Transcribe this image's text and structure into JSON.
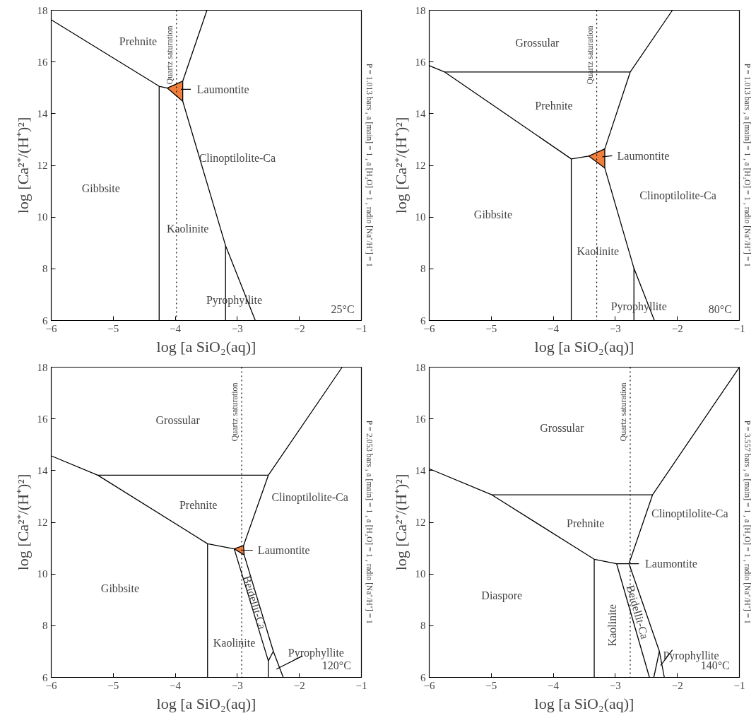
{
  "chart_data": [
    {
      "type": "line",
      "xlabel": "log [a SiO₂(aq)]",
      "ylabel": "log [Ca²⁺/(H⁺)²]",
      "xlim": [
        -6,
        -1
      ],
      "ylim": [
        6,
        18
      ],
      "xticks": [
        -6,
        -5,
        -4,
        -3,
        -2,
        -1
      ],
      "yticks": [
        6,
        8,
        10,
        12,
        14,
        16,
        18
      ],
      "grid": false,
      "series": [
        {
          "color": "#000000",
          "x": [
            -6,
            -4.26,
            -4.13
          ],
          "values": [
            17.63,
            15.06,
            14.99
          ]
        },
        {
          "color": "#000000",
          "x": [
            -4.26,
            -4.26
          ],
          "values": [
            15.06,
            6
          ]
        },
        {
          "color": "#000000",
          "x": [
            -3.88,
            -3.49
          ],
          "values": [
            15.26,
            18
          ]
        },
        {
          "color": "#000000",
          "x": [
            -3.88,
            -3.19,
            -2.71
          ],
          "values": [
            14.48,
            8.9,
            6
          ]
        },
        {
          "color": "#000000",
          "x": [
            -3.19,
            -3.19
          ],
          "values": [
            8.9,
            6
          ]
        },
        {
          "type": "area",
          "color": "#f07f3c",
          "x": [
            -4.13,
            -3.88,
            -3.88,
            -4.13
          ],
          "values": [
            14.99,
            15.26,
            14.48,
            14.99
          ]
        }
      ],
      "ref_lines": [
        {
          "axis": "x",
          "value": -3.98,
          "label": "Quartz saturation",
          "line_style": "dotted"
        }
      ],
      "annotations": [
        "Prehnite",
        "Gibbsite",
        "Kaolinite",
        "Clinoptilolite-Ca",
        "Pyrophyllite",
        "Laumontite",
        "25°C",
        "P = 1.013 bars , a [main] = 1 , a [H₂O] = 1 , radio [Na⁺/H⁺] = 1"
      ]
    },
    {
      "type": "line",
      "xlabel": "log [a SiO₂(aq)]",
      "ylabel": "log [Ca²⁺/(H⁺)²]",
      "xlim": [
        -6,
        -1
      ],
      "ylim": [
        6,
        18
      ],
      "xticks": [
        -6,
        -5,
        -4,
        -3,
        -2,
        -1
      ],
      "yticks": [
        6,
        8,
        10,
        12,
        14,
        16,
        18
      ],
      "grid": false,
      "series": [
        {
          "color": "#000000",
          "x": [
            -6,
            -5.75,
            -3.71,
            -3.43
          ],
          "values": [
            15.86,
            15.61,
            12.25,
            12.36
          ]
        },
        {
          "color": "#000000",
          "x": [
            -5.75,
            -2.76
          ],
          "values": [
            15.61,
            15.61
          ]
        },
        {
          "color": "#000000",
          "x": [
            -3.17,
            -2.76,
            -2.08
          ],
          "values": [
            12.64,
            15.61,
            18
          ]
        },
        {
          "color": "#000000",
          "x": [
            -3.17,
            -2.7,
            -2.37
          ],
          "values": [
            11.9,
            8.02,
            6
          ]
        },
        {
          "color": "#000000",
          "x": [
            -3.71,
            -3.71
          ],
          "values": [
            12.25,
            6
          ]
        },
        {
          "color": "#000000",
          "x": [
            -2.7,
            -2.7
          ],
          "values": [
            8.02,
            6
          ]
        },
        {
          "type": "area",
          "color": "#f07f3c",
          "x": [
            -3.43,
            -3.17,
            -3.17,
            -3.43
          ],
          "values": [
            12.36,
            12.64,
            11.9,
            12.36
          ]
        }
      ],
      "ref_lines": [
        {
          "axis": "x",
          "value": -3.3,
          "label": "Quartz saturation",
          "line_style": "dotted"
        }
      ],
      "annotations": [
        "Grossular",
        "Prehnite",
        "Gibbsite",
        "Kaolinite",
        "Clinoptilolite-Ca",
        "Pyrophyllite",
        "Laumontite",
        "80°C",
        "P = 1.013 bars , a [main] = 1 , a [H₂O] = 1 , radio [Na⁺/H⁺] = 1"
      ]
    },
    {
      "type": "line",
      "xlabel": "log [a SiO₂(aq)]",
      "ylabel": "log [Ca²⁺/(H⁺)²]",
      "xlim": [
        -6,
        -1
      ],
      "ylim": [
        6,
        18
      ],
      "xticks": [
        -6,
        -5,
        -4,
        -3,
        -2,
        -1
      ],
      "yticks": [
        6,
        8,
        10,
        12,
        14,
        16,
        18
      ],
      "grid": false,
      "series": [
        {
          "color": "#000000",
          "x": [
            -6,
            -5.25,
            -3.48,
            -3.05
          ],
          "values": [
            14.57,
            13.82,
            11.17,
            10.97
          ]
        },
        {
          "color": "#000000",
          "x": [
            -5.25,
            -2.5
          ],
          "values": [
            13.82,
            13.82
          ]
        },
        {
          "color": "#000000",
          "x": [
            -2.9,
            -2.5,
            -1.31
          ],
          "values": [
            11.1,
            13.82,
            18
          ]
        },
        {
          "color": "#000000",
          "x": [
            -3.05,
            -2.5,
            -2.5
          ],
          "values": [
            10.97,
            6.64,
            6
          ]
        },
        {
          "color": "#000000",
          "x": [
            -2.89,
            -2.42,
            -2.26
          ],
          "values": [
            10.74,
            7.01,
            6
          ]
        },
        {
          "color": "#000000",
          "x": [
            -2.5,
            -2.42
          ],
          "values": [
            6.64,
            7.01
          ]
        },
        {
          "color": "#000000",
          "x": [
            -3.48,
            -3.48
          ],
          "values": [
            11.17,
            6
          ]
        },
        {
          "type": "area",
          "color": "#f07f3c",
          "x": [
            -3.05,
            -2.9,
            -2.89,
            -3.05
          ],
          "values": [
            10.97,
            11.1,
            10.74,
            10.97
          ]
        }
      ],
      "ref_lines": [
        {
          "axis": "x",
          "value": -2.93,
          "label": "Quartz saturation",
          "line_style": "dotted"
        }
      ],
      "annotations": [
        "Grossular",
        "Prehnite",
        "Clinoptilolite-Ca",
        "Gibbsite",
        "Kaolinite",
        "Beidellit-Ca",
        "Pyrophyllite",
        "Laumontite",
        "120°C",
        "P = 2.053 bars , a [main] = 1 , a [H₂O] = 1 , radio [Na⁺/H⁺] = 1"
      ]
    },
    {
      "type": "line",
      "xlabel": "log [a SiO₂(aq)]",
      "ylabel": "log [Ca²⁺/(H⁺)²]",
      "xlim": [
        -6,
        -1
      ],
      "ylim": [
        6,
        18
      ],
      "xticks": [
        -6,
        -5,
        -4,
        -3,
        -2,
        -1
      ],
      "yticks": [
        6,
        8,
        10,
        12,
        14,
        16,
        18
      ],
      "grid": false,
      "series": [
        {
          "color": "#000000",
          "x": [
            -6,
            -4.99,
            -3.34,
            -2.98,
            -2.78,
            -2.4,
            -1
          ],
          "values": [
            14.07,
            13.06,
            10.57,
            10.4,
            10.4,
            13.06,
            18
          ]
        },
        {
          "color": "#000000",
          "x": [
            -4.99,
            -2.4
          ],
          "values": [
            13.06,
            13.06
          ]
        },
        {
          "color": "#000000",
          "x": [
            -2.98,
            -2.45
          ],
          "values": [
            10.4,
            6
          ]
        },
        {
          "color": "#000000",
          "x": [
            -2.78,
            -2.29,
            -2.21
          ],
          "values": [
            10.4,
            7.01,
            6
          ]
        },
        {
          "color": "#000000",
          "x": [
            -2.38,
            -2.29
          ],
          "values": [
            6,
            7.01
          ]
        },
        {
          "color": "#000000",
          "x": [
            -3.34,
            -3.34
          ],
          "values": [
            10.57,
            6
          ]
        }
      ],
      "ref_lines": [
        {
          "axis": "x",
          "value": -2.76,
          "label": "Quartz saturation",
          "line_style": "dotted"
        }
      ],
      "annotations": [
        "Grossular",
        "Prehnite",
        "Clinoptilolite-Ca",
        "Diaspore",
        "Kaolinite",
        "Beidellit-Ca",
        "Pyrophyllite",
        "Laumontite",
        "140°C",
        "P = 3.557 bars , a [main] = 1 , a [H₂O] = 1 , radio [Na⁺/H⁺] = 1"
      ]
    }
  ]
}
